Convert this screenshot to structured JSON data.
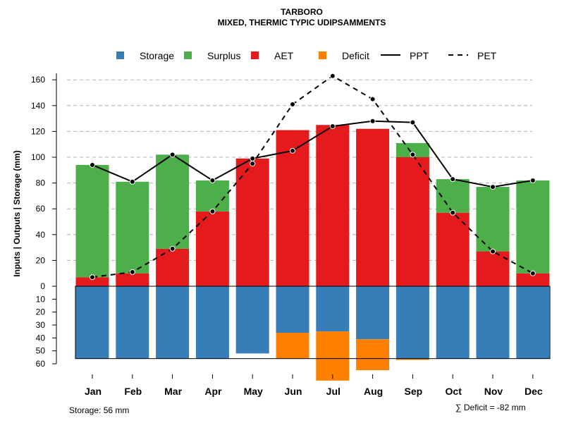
{
  "colors": {
    "storage": "#377EB8",
    "surplus": "#4DAF4A",
    "aet": "#E41A1C",
    "deficit": "#FF7F00",
    "line": "#000000",
    "grid": "#b0b0b0"
  },
  "chart_data": {
    "type": "bar",
    "title": "TARBORO",
    "subtitle": "MIXED, THERMIC TYPIC UDIPSAMMENTS",
    "ylabel": "Inputs | Outputs | Storage     (mm)",
    "categories": [
      "Jan",
      "Feb",
      "Mar",
      "Apr",
      "May",
      "Jun",
      "Jul",
      "Aug",
      "Sep",
      "Oct",
      "Nov",
      "Dec"
    ],
    "legend": {
      "storage": "Storage",
      "surplus": "Surplus",
      "aet": "AET",
      "deficit": "Deficit",
      "ppt": "PPT",
      "pet": "PET"
    },
    "upper_ylim": [
      0,
      170
    ],
    "upper_ticks": [
      0,
      20,
      40,
      60,
      80,
      100,
      120,
      140,
      160
    ],
    "lower_ylim": [
      0,
      60
    ],
    "lower_ticks": [
      0,
      10,
      20,
      30,
      40,
      50,
      60
    ],
    "series": [
      {
        "name": "AET",
        "values": [
          7,
          10,
          29,
          58,
          99,
          121,
          125,
          122,
          100,
          57,
          27,
          10
        ]
      },
      {
        "name": "Surplus",
        "values": [
          87,
          71,
          73,
          24,
          0,
          0,
          0,
          0,
          11,
          26,
          50,
          72
        ]
      },
      {
        "name": "PPT",
        "values": [
          94,
          81,
          102,
          82,
          99,
          105,
          124,
          128,
          127,
          83,
          77,
          82
        ]
      },
      {
        "name": "PET",
        "values": [
          7,
          11,
          29,
          58,
          95,
          141,
          163,
          145,
          102,
          57,
          27,
          10
        ]
      },
      {
        "name": "Storage",
        "values": [
          56,
          56,
          56,
          56,
          52,
          36,
          35,
          41,
          56,
          56,
          56,
          56
        ]
      },
      {
        "name": "Deficit",
        "values": [
          0,
          0,
          0,
          0,
          0,
          20,
          38,
          24,
          1,
          0,
          0,
          0
        ]
      }
    ],
    "storage_capacity": 56,
    "storage_note": "Storage: 56 mm",
    "deficit_note": "∑ Deficit = -82 mm"
  }
}
